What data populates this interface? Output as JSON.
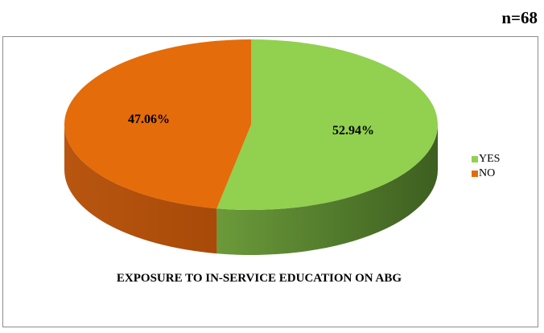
{
  "sample_size": "n=68",
  "chart_data": {
    "type": "pie",
    "title": "EXPOSURE TO IN-SERVICE EDUCATION ON ABG",
    "categories": [
      "YES",
      "NO"
    ],
    "values": [
      52.94,
      47.06
    ],
    "labels": [
      "52.94%",
      "47.06%"
    ],
    "colors": [
      "#92D050",
      "#E46C0A"
    ],
    "legend_position": "right",
    "three_d": true
  }
}
